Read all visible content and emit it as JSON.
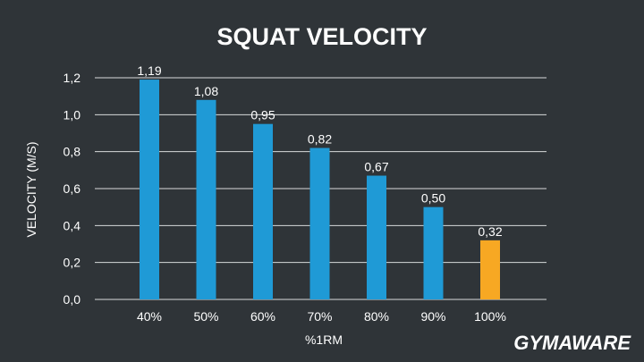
{
  "chart_data": {
    "type": "bar",
    "title": "SQUAT VELOCITY",
    "xlabel": "%1RM",
    "ylabel": "VELOCITY (M/S)",
    "categories": [
      "40%",
      "50%",
      "60%",
      "70%",
      "80%",
      "90%",
      "100%"
    ],
    "values": [
      1.19,
      1.08,
      0.95,
      0.82,
      0.67,
      0.5,
      0.32
    ],
    "value_labels": [
      "1,19",
      "1,08",
      "0,95",
      "0,82",
      "0,67",
      "0,50",
      "0,32"
    ],
    "ylim": [
      0,
      1.2
    ],
    "yticks": [
      0,
      0.2,
      0.4,
      0.6,
      0.8,
      1.0,
      1.2
    ],
    "ytick_labels": [
      "0,0",
      "0,2",
      "0,4",
      "0,6",
      "0,8",
      "1,0",
      "1,2"
    ],
    "grid": true,
    "colors": {
      "bar": "#1f9ad6",
      "highlight_bar": "#f7a823",
      "background": "#2f3438"
    },
    "highlight_index": 6
  },
  "logo": {
    "text": "GYMAWARE"
  }
}
